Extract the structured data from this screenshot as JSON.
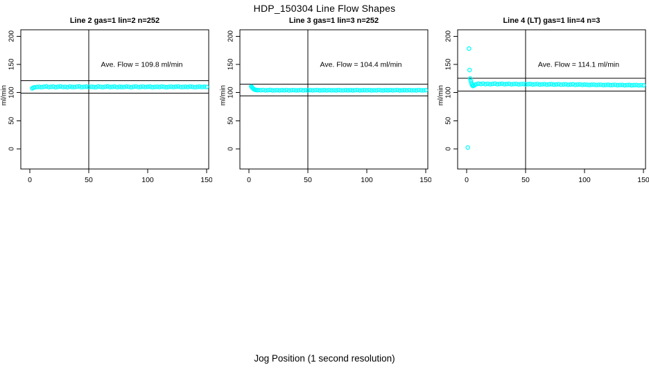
{
  "figure": {
    "title": "HDP_150304  Line Flow Shapes",
    "xlabel": "Jog Position (1 second resolution)"
  },
  "chart_data": [
    {
      "type": "scatter",
      "title": "Line 2 gas=1 lin=2 n=252",
      "annotation": "Ave. Flow =  109.8  ml/min",
      "ave_flow_ml_min": 109.8,
      "n": 252,
      "ylabel": "ml/min",
      "xlabel": "",
      "xlim": [
        0,
        150
      ],
      "ylim": [
        0,
        200
      ],
      "xticks": [
        0,
        50,
        100,
        150
      ],
      "yticks": [
        0,
        50,
        100,
        150,
        200
      ],
      "vline_x": 50,
      "hlines": [
        120.8,
        98.8
      ],
      "marker": "open-circle",
      "marker_color": "#00FFFF",
      "points": [
        [
          2,
          107.5
        ],
        [
          3,
          108.6
        ],
        [
          4,
          109.3
        ],
        [
          6,
          109.8
        ],
        [
          8,
          110.2
        ],
        [
          10,
          109.6
        ],
        [
          12,
          110.4
        ],
        [
          14,
          110.9
        ],
        [
          16,
          109.7
        ],
        [
          18,
          110.1
        ],
        [
          20,
          110.6
        ],
        [
          22,
          109.5
        ],
        [
          24,
          110.3
        ],
        [
          26,
          110.8
        ],
        [
          28,
          109.9
        ],
        [
          30,
          110.2
        ],
        [
          32,
          109.6
        ],
        [
          34,
          110.7
        ],
        [
          36,
          110.0
        ],
        [
          38,
          109.8
        ],
        [
          40,
          110.5
        ],
        [
          42,
          110.9
        ],
        [
          44,
          109.6
        ],
        [
          46,
          110.2
        ],
        [
          48,
          110.6
        ],
        [
          50,
          109.8
        ],
        [
          52,
          110.3
        ],
        [
          54,
          110.0
        ],
        [
          56,
          109.5
        ],
        [
          58,
          110.8
        ],
        [
          60,
          110.2
        ],
        [
          62,
          109.7
        ],
        [
          64,
          110.4
        ],
        [
          66,
          110.9
        ],
        [
          68,
          109.8
        ],
        [
          70,
          110.1
        ],
        [
          72,
          110.6
        ],
        [
          74,
          109.6
        ],
        [
          76,
          110.3
        ],
        [
          78,
          110.0
        ],
        [
          80,
          109.9
        ],
        [
          82,
          110.7
        ],
        [
          84,
          110.2
        ],
        [
          86,
          109.5
        ],
        [
          88,
          110.4
        ],
        [
          90,
          110.8
        ],
        [
          92,
          109.7
        ],
        [
          94,
          110.1
        ],
        [
          96,
          110.5
        ],
        [
          98,
          109.9
        ],
        [
          100,
          110.3
        ],
        [
          102,
          110.6
        ],
        [
          104,
          109.6
        ],
        [
          106,
          110.0
        ],
        [
          108,
          110.4
        ],
        [
          110,
          109.8
        ],
        [
          112,
          110.7
        ],
        [
          114,
          110.2
        ],
        [
          116,
          109.5
        ],
        [
          118,
          110.1
        ],
        [
          120,
          110.5
        ],
        [
          122,
          109.9
        ],
        [
          124,
          110.3
        ],
        [
          126,
          110.8
        ],
        [
          128,
          109.7
        ],
        [
          130,
          110.0
        ],
        [
          132,
          110.4
        ],
        [
          134,
          109.8
        ],
        [
          136,
          110.6
        ],
        [
          138,
          110.2
        ],
        [
          140,
          109.6
        ],
        [
          142,
          110.1
        ],
        [
          144,
          110.5
        ],
        [
          146,
          109.9
        ],
        [
          148,
          110.3
        ],
        [
          150,
          110.0
        ]
      ]
    },
    {
      "type": "scatter",
      "title": "Line 3 gas=1 lin=3 n=252",
      "annotation": "Ave. Flow =  104.4  ml/min",
      "ave_flow_ml_min": 104.4,
      "n": 252,
      "ylabel": "ml/min",
      "xlabel": "",
      "xlim": [
        0,
        150
      ],
      "ylim": [
        0,
        200
      ],
      "xticks": [
        0,
        50,
        100,
        150
      ],
      "yticks": [
        0,
        50,
        100,
        150,
        200
      ],
      "vline_x": 50,
      "hlines": [
        114.8,
        94.0
      ],
      "marker": "open-circle",
      "marker_color": "#00FFFF",
      "points": [
        [
          2,
          110.8
        ],
        [
          2.5,
          109.6
        ],
        [
          3,
          108.3
        ],
        [
          3.5,
          107.2
        ],
        [
          4,
          106.3
        ],
        [
          4.5,
          105.6
        ],
        [
          5,
          105.1
        ],
        [
          6,
          104.6
        ],
        [
          7,
          104.3
        ],
        [
          8,
          104.5
        ],
        [
          10,
          104.2
        ],
        [
          12,
          104.5
        ],
        [
          14,
          103.9
        ],
        [
          16,
          104.2
        ],
        [
          18,
          104.6
        ],
        [
          20,
          103.8
        ],
        [
          22,
          104.1
        ],
        [
          24,
          104.4
        ],
        [
          26,
          103.9
        ],
        [
          28,
          104.3
        ],
        [
          30,
          104.0
        ],
        [
          32,
          104.5
        ],
        [
          34,
          103.8
        ],
        [
          36,
          104.2
        ],
        [
          38,
          104.4
        ],
        [
          40,
          103.9
        ],
        [
          42,
          104.1
        ],
        [
          44,
          104.5
        ],
        [
          46,
          103.8
        ],
        [
          48,
          104.3
        ],
        [
          50,
          104.0
        ],
        [
          52,
          104.4
        ],
        [
          54,
          103.9
        ],
        [
          56,
          104.2
        ],
        [
          58,
          104.5
        ],
        [
          60,
          103.8
        ],
        [
          62,
          104.1
        ],
        [
          64,
          104.3
        ],
        [
          66,
          103.9
        ],
        [
          68,
          104.4
        ],
        [
          70,
          104.0
        ],
        [
          72,
          104.2
        ],
        [
          74,
          103.8
        ],
        [
          76,
          104.5
        ],
        [
          78,
          104.1
        ],
        [
          80,
          103.9
        ],
        [
          82,
          104.3
        ],
        [
          84,
          104.0
        ],
        [
          86,
          104.4
        ],
        [
          88,
          103.8
        ],
        [
          90,
          104.2
        ],
        [
          92,
          104.5
        ],
        [
          94,
          103.9
        ],
        [
          96,
          104.1
        ],
        [
          98,
          104.3
        ],
        [
          100,
          104.0
        ],
        [
          102,
          104.4
        ],
        [
          104,
          103.8
        ],
        [
          106,
          104.2
        ],
        [
          108,
          103.9
        ],
        [
          110,
          104.5
        ],
        [
          112,
          104.1
        ],
        [
          114,
          103.8
        ],
        [
          116,
          104.3
        ],
        [
          118,
          104.0
        ],
        [
          120,
          104.4
        ],
        [
          122,
          103.9
        ],
        [
          124,
          104.2
        ],
        [
          126,
          104.5
        ],
        [
          128,
          103.8
        ],
        [
          130,
          104.1
        ],
        [
          132,
          104.3
        ],
        [
          134,
          104.0
        ],
        [
          136,
          104.4
        ],
        [
          138,
          103.9
        ],
        [
          140,
          104.2
        ],
        [
          142,
          103.8
        ],
        [
          144,
          104.5
        ],
        [
          146,
          104.1
        ],
        [
          148,
          104.0
        ],
        [
          150,
          104.3
        ]
      ]
    },
    {
      "type": "scatter",
      "title": "Line 4 (LT) gas=1 lin=4 n=3",
      "annotation": "Ave. Flow =  114.1  ml/min",
      "ave_flow_ml_min": 114.1,
      "n": 3,
      "ylabel": "ml/min",
      "xlabel": "",
      "xlim": [
        0,
        150
      ],
      "ylim": [
        0,
        200
      ],
      "xticks": [
        0,
        50,
        100,
        150
      ],
      "yticks": [
        0,
        50,
        100,
        150,
        200
      ],
      "vline_x": 50,
      "hlines": [
        125.5,
        102.7
      ],
      "marker": "open-circle",
      "marker_color": "#00FFFF",
      "points": [
        [
          1,
          2.5
        ],
        [
          2,
          178
        ],
        [
          2.5,
          140
        ],
        [
          3,
          125
        ],
        [
          3.5,
          121
        ],
        [
          4,
          117
        ],
        [
          4.5,
          114
        ],
        [
          5,
          112.2
        ],
        [
          5.5,
          111.6
        ],
        [
          6,
          112.4
        ],
        [
          7,
          113.6
        ],
        [
          8,
          114.8
        ],
        [
          10,
          115.8
        ],
        [
          12,
          115.2
        ],
        [
          14,
          115.9
        ],
        [
          16,
          115.0
        ],
        [
          18,
          115.6
        ],
        [
          20,
          114.8
        ],
        [
          22,
          115.4
        ],
        [
          24,
          115.8
        ],
        [
          26,
          114.9
        ],
        [
          28,
          115.3
        ],
        [
          30,
          115.7
        ],
        [
          32,
          114.8
        ],
        [
          34,
          115.2
        ],
        [
          36,
          115.5
        ],
        [
          38,
          114.7
        ],
        [
          40,
          115.1
        ],
        [
          42,
          115.4
        ],
        [
          44,
          114.6
        ],
        [
          46,
          115.0
        ],
        [
          48,
          115.3
        ],
        [
          50,
          114.5
        ],
        [
          52,
          114.9
        ],
        [
          54,
          115.2
        ],
        [
          56,
          114.4
        ],
        [
          58,
          114.8
        ],
        [
          60,
          115.1
        ],
        [
          62,
          114.3
        ],
        [
          64,
          114.7
        ],
        [
          66,
          115.0
        ],
        [
          68,
          114.2
        ],
        [
          70,
          114.6
        ],
        [
          72,
          114.9
        ],
        [
          74,
          114.1
        ],
        [
          76,
          114.5
        ],
        [
          78,
          114.8
        ],
        [
          80,
          114.0
        ],
        [
          82,
          114.4
        ],
        [
          84,
          114.7
        ],
        [
          86,
          113.9
        ],
        [
          88,
          114.3
        ],
        [
          90,
          114.6
        ],
        [
          92,
          113.8
        ],
        [
          94,
          114.2
        ],
        [
          96,
          114.5
        ],
        [
          98,
          113.7
        ],
        [
          100,
          114.1
        ],
        [
          102,
          113.9
        ],
        [
          104,
          113.5
        ],
        [
          106,
          113.8
        ],
        [
          108,
          114.0
        ],
        [
          110,
          113.4
        ],
        [
          112,
          113.7
        ],
        [
          114,
          113.9
        ],
        [
          116,
          113.3
        ],
        [
          118,
          113.6
        ],
        [
          120,
          113.8
        ],
        [
          122,
          113.2
        ],
        [
          124,
          113.5
        ],
        [
          126,
          113.7
        ],
        [
          128,
          113.1
        ],
        [
          130,
          113.4
        ],
        [
          132,
          113.6
        ],
        [
          134,
          113.0
        ],
        [
          136,
          113.3
        ],
        [
          138,
          113.5
        ],
        [
          140,
          112.9
        ],
        [
          142,
          113.2
        ],
        [
          144,
          113.4
        ],
        [
          146,
          112.8
        ],
        [
          148,
          113.1
        ],
        [
          150,
          113.0
        ]
      ]
    }
  ]
}
